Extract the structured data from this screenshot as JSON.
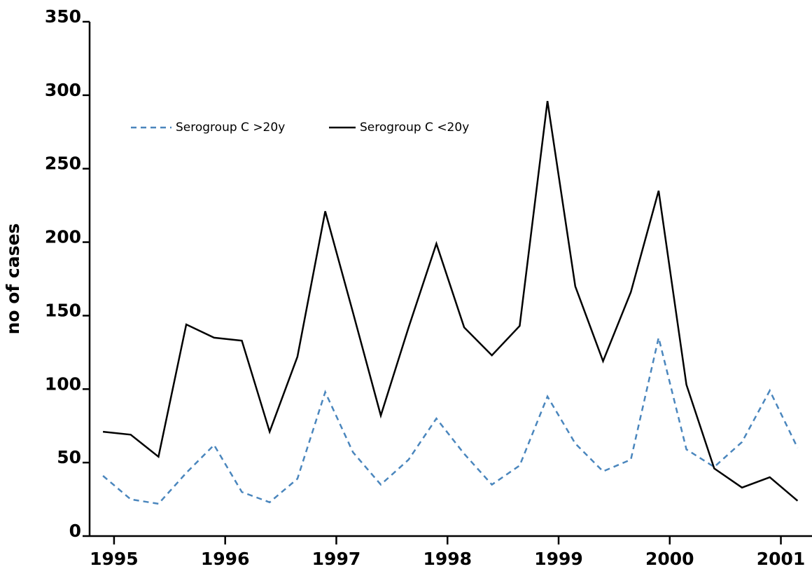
{
  "chart_data": {
    "type": "line",
    "y_label": "no of cases",
    "x": [
      1994.9,
      1995.15,
      1995.4,
      1995.65,
      1995.9,
      1996.15,
      1996.4,
      1996.65,
      1996.9,
      1997.15,
      1997.4,
      1997.65,
      1997.9,
      1998.15,
      1998.4,
      1998.65,
      1998.9,
      1999.15,
      1999.4,
      1999.65,
      1999.9,
      2000.15,
      2000.4,
      2000.65,
      2000.9,
      2001.15
    ],
    "series": [
      {
        "name": "Serogroup C >20y",
        "color": "#4a86bd",
        "dash": true,
        "values": [
          41,
          25,
          22,
          43,
          62,
          30,
          23,
          39,
          98,
          57,
          35,
          52,
          80,
          56,
          35,
          48,
          95,
          63,
          44,
          52,
          135,
          59,
          47,
          64,
          99,
          60
        ]
      },
      {
        "name": "Serogroup C <20y",
        "color": "#000000",
        "dash": false,
        "values": [
          71,
          69,
          54,
          144,
          135,
          133,
          71,
          122,
          221,
          152,
          82,
          142,
          199,
          142,
          123,
          143,
          296,
          170,
          119,
          166,
          235,
          103,
          46,
          33,
          40,
          24
        ]
      }
    ],
    "xlim": [
      1994.78,
      2001.28
    ],
    "xticks": [
      1995,
      1996,
      1997,
      1998,
      1999,
      2000,
      2001
    ],
    "ylim": [
      0,
      350
    ],
    "yticks": [
      0,
      50,
      100,
      150,
      200,
      250,
      300,
      350
    ],
    "grid": false
  }
}
